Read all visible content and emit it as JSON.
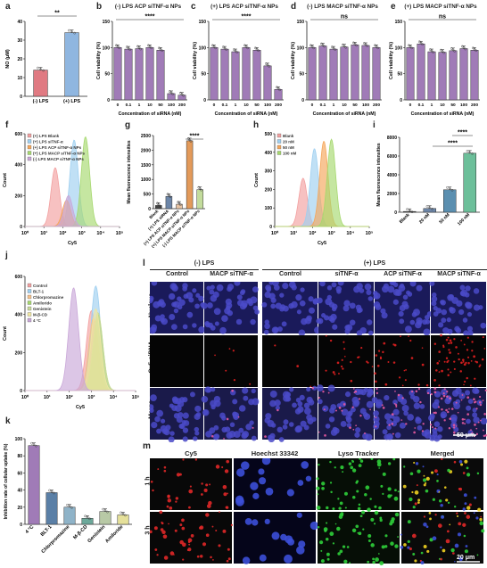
{
  "panels": {
    "a": {
      "letter": "a"
    },
    "b": {
      "letter": "b",
      "title": "(-) LPS ACP siTNF-α NPs"
    },
    "c": {
      "letter": "c",
      "title": "(+) LPS ACP siTNF-α NPs"
    },
    "d": {
      "letter": "d",
      "title": "(-) LPS MACP siTNF-α NPs"
    },
    "e": {
      "letter": "e",
      "title": "(+) LPS MACP siTNF-α NPs"
    },
    "f": {
      "letter": "f"
    },
    "g": {
      "letter": "g"
    },
    "h": {
      "letter": "h"
    },
    "i": {
      "letter": "i"
    },
    "j": {
      "letter": "j"
    },
    "k": {
      "letter": "k"
    },
    "l": {
      "letter": "l"
    },
    "m": {
      "letter": "m"
    }
  },
  "chart_data": [
    {
      "id": "a",
      "type": "bar",
      "categories": [
        "(-) LPS",
        "(+) LPS"
      ],
      "values": [
        14,
        34
      ],
      "ylabel": "NO (μM)",
      "ylim": [
        0,
        40
      ],
      "yticks": [
        "0",
        "10",
        "20",
        "30",
        "40"
      ],
      "annotations": [
        "**"
      ],
      "colors": [
        "#e07a82",
        "#8fb6e0"
      ]
    },
    {
      "id": "b",
      "type": "bar",
      "categories": [
        "0",
        "0.1",
        "1",
        "10",
        "50",
        "100",
        "200"
      ],
      "values": [
        100,
        97,
        98,
        100,
        95,
        12,
        9
      ],
      "ylabel": "Cell viability (%)",
      "xlabel": "Concentration of siRNA (nM)",
      "ylim": [
        0,
        150
      ],
      "yticks": [
        "0",
        "50",
        "100",
        "150"
      ],
      "annotations": [
        "****"
      ],
      "color": "#a07bb7"
    },
    {
      "id": "c",
      "type": "bar",
      "categories": [
        "0",
        "0.1",
        "1",
        "10",
        "50",
        "100",
        "200"
      ],
      "values": [
        100,
        97,
        92,
        100,
        95,
        65,
        20
      ],
      "ylabel": "Cell viability (%)",
      "xlabel": "Concentration of siRNA (nM)",
      "ylim": [
        0,
        150
      ],
      "yticks": [
        "0",
        "50",
        "100",
        "150"
      ],
      "annotations": [
        "****"
      ],
      "color": "#a07bb7"
    },
    {
      "id": "d",
      "type": "bar",
      "categories": [
        "0",
        "0.1",
        "1",
        "10",
        "50",
        "100",
        "200"
      ],
      "values": [
        100,
        103,
        97,
        101,
        105,
        104,
        100
      ],
      "ylabel": "Cell viability (%)",
      "xlabel": "Concentration of siRNA (nM)",
      "ylim": [
        0,
        150
      ],
      "yticks": [
        "0",
        "50",
        "100",
        "150"
      ],
      "annotations": [
        "ns"
      ],
      "color": "#a07bb7"
    },
    {
      "id": "e",
      "type": "bar",
      "categories": [
        "0",
        "0.1",
        "1",
        "10",
        "50",
        "100",
        "200"
      ],
      "values": [
        100,
        107,
        92,
        91,
        94,
        98,
        95
      ],
      "ylabel": "Cell viability (%)",
      "xlabel": "Concentration of siRNA (nM)",
      "ylim": [
        0,
        150
      ],
      "yticks": [
        "0",
        "50",
        "100",
        "150"
      ],
      "annotations": [
        "ns"
      ],
      "color": "#a07bb7"
    },
    {
      "id": "f",
      "type": "area",
      "xlabel": "Cy5",
      "ylabel": "Count",
      "ylim": [
        0,
        600
      ],
      "yticks": [
        "0",
        "200",
        "400",
        "600"
      ],
      "xticks": [
        "10⁰",
        "10¹",
        "10²",
        "10³",
        "10⁴",
        "10⁵"
      ],
      "series": [
        {
          "name": "(+) LPS Blank",
          "color": "#f2a0a0"
        },
        {
          "name": "(+) LPS siTNF-α",
          "color": "#9ecff0"
        },
        {
          "name": "(+) LPS ACP siTNF-α NPs",
          "color": "#f5a65a"
        },
        {
          "name": "(+) LPS MACP siTNF-α NPs",
          "color": "#a6d86e"
        },
        {
          "name": "(-) LPS MACP siTNF-α NPs",
          "color": "#c9a7d8"
        }
      ],
      "peaks": [
        {
          "center": 1.6,
          "height": 380
        },
        {
          "center": 2.6,
          "height": 560
        },
        {
          "center": 2.2,
          "height": 170
        },
        {
          "center": 3.2,
          "height": 580
        },
        {
          "center": 2.3,
          "height": 200
        }
      ]
    },
    {
      "id": "g",
      "type": "bar",
      "ylabel": "Mean fluorescence intensities",
      "ylim": [
        0,
        2500
      ],
      "yticks": [
        "0",
        "500",
        "1000",
        "1500",
        "2000",
        "2500"
      ],
      "categories": [
        "Blank",
        "(+) LPS siRNA",
        "(+) LPS ACP siTNF-α NPs",
        "(+) LPS MACP siTNF-α NPs",
        "(-) LPS MACP siTNF-α NPs"
      ],
      "values": [
        110,
        420,
        150,
        2320,
        650
      ],
      "annotations": [
        "****"
      ],
      "colors": [
        "#444",
        "#6d86a8",
        "#e7c3a3",
        "#e39a5a",
        "#c3dc9c"
      ]
    },
    {
      "id": "h",
      "type": "area",
      "xlabel": "Cy5",
      "ylabel": "Count",
      "ylim": [
        0,
        500
      ],
      "yticks": [
        "0",
        "100",
        "200",
        "300",
        "400",
        "500"
      ],
      "xticks": [
        "10⁰",
        "10¹",
        "10²",
        "10³",
        "10⁴",
        "10⁵"
      ],
      "series": [
        {
          "name": "Blank",
          "color": "#f2a0a0"
        },
        {
          "name": "20 nM",
          "color": "#9ecff0"
        },
        {
          "name": "50 nM",
          "color": "#f5a65a"
        },
        {
          "name": "100 nM",
          "color": "#a6d86e"
        }
      ],
      "peaks": [
        {
          "center": 1.5,
          "height": 260
        },
        {
          "center": 2.1,
          "height": 420
        },
        {
          "center": 2.6,
          "height": 460
        },
        {
          "center": 3.0,
          "height": 470
        }
      ]
    },
    {
      "id": "i",
      "type": "bar",
      "ylabel": "Mean fluorescence intensities",
      "ylim": [
        0,
        8000
      ],
      "yticks": [
        "0",
        "2000",
        "4000",
        "6000",
        "8000"
      ],
      "categories": [
        "Blank",
        "20 nM",
        "50 nM",
        "100 nM"
      ],
      "values": [
        80,
        400,
        2400,
        6300
      ],
      "annotations": [
        "****",
        "****"
      ],
      "colors": [
        "#333",
        "#6d86a8",
        "#5b8fb0",
        "#6cbf9a"
      ]
    },
    {
      "id": "j",
      "type": "area",
      "xlabel": "Cy5",
      "ylabel": "Count",
      "ylim": [
        0,
        600
      ],
      "yticks": [
        "0",
        "200",
        "400",
        "600"
      ],
      "xticks": [
        "10⁰",
        "10¹",
        "10²",
        "10³",
        "10⁴",
        "10⁵"
      ],
      "series": [
        {
          "name": "Control",
          "color": "#f2a0a0"
        },
        {
          "name": "BLT-1",
          "color": "#9ecff0"
        },
        {
          "name": "Chlorpromazine",
          "color": "#f5c08a"
        },
        {
          "name": "Amilorido",
          "color": "#a6d86e"
        },
        {
          "name": "Genistein",
          "color": "#c9d99a"
        },
        {
          "name": "M-β-CD",
          "color": "#f0e6a0"
        },
        {
          "name": "4 °C",
          "color": "#c9a7d8"
        }
      ],
      "peaks": [
        {
          "center": 3.0,
          "height": 420
        },
        {
          "center": 3.2,
          "height": 550
        },
        {
          "center": 3.1,
          "height": 380
        },
        {
          "center": 3.3,
          "height": 400
        },
        {
          "center": 3.3,
          "height": 410
        },
        {
          "center": 3.2,
          "height": 430
        },
        {
          "center": 2.2,
          "height": 540
        }
      ]
    },
    {
      "id": "k",
      "type": "bar",
      "ylabel": "Inhibition rate of cellular uptake (%)",
      "ylim": [
        0,
        100
      ],
      "yticks": [
        "0",
        "20",
        "40",
        "60",
        "80",
        "100"
      ],
      "categories": [
        "4 °C",
        "BLT-1",
        "Chlorpromazine",
        "M-β-CD",
        "Genistein",
        "Amiloride"
      ],
      "values": [
        92,
        37,
        20,
        7,
        15,
        11
      ],
      "colors": [
        "#a07bb7",
        "#5a7fa6",
        "#8fb3c8",
        "#6ca89a",
        "#b8c9a6",
        "#e5e09a"
      ]
    }
  ],
  "l": {
    "group_left": "(-) LPS",
    "group_right": "(+) LPS",
    "cols": [
      "Control",
      "MACP siTNF-α",
      "Control",
      "siTNF-α",
      "ACP siTNF-α",
      "MACP siTNF-α"
    ],
    "rows": [
      "Nucleus",
      "Cy5-siRNA",
      "Merge"
    ],
    "scale": "50 μm"
  },
  "m": {
    "cols": [
      "Cy5",
      "Hoechst 33342",
      "Lyso Tracker",
      "Merged"
    ],
    "rows": [
      "1 h",
      "3 h"
    ],
    "scale": "20 μm"
  }
}
